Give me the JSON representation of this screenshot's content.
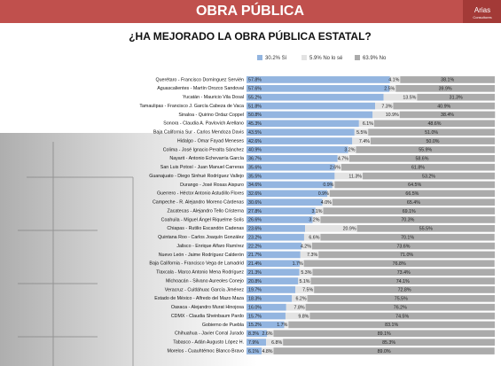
{
  "logo": {
    "name": "Arias",
    "tagline": "Consultores"
  },
  "chart_data": {
    "type": "stacked-bar-horizontal",
    "title": "OBRA PÚBLICA",
    "subtitle": "¿HA MEJORADO LA OBRA PÚBLICA ESTATAL?",
    "xlim": [
      0,
      100
    ],
    "categories": [
      "Querétaro - Francisco Domínguez Servién",
      "Aguascalientes - Martín Orozco Sandoval",
      "Yucatán - Mauricio Vila Dosal",
      "Tamaulipas - Francisco J. García Cabeza de Vaca",
      "Sinaloa - Quirino Ordaz Coppel",
      "Sonora - Claudia A. Pavlovich Arellano",
      "Baja California Sur - Carlos Mendoza Davis",
      "Hidalgo - Omar Fayad Meneses",
      "Colima - José Ignacio Peralta Sánchez",
      "Nayarit - Antonio Echevarría García",
      "San Luis Potosí - Juan Manuel Carreras",
      "Guanajuato - Diego Sinhué Rodríguez Vallejo",
      "Durango - José Rosas Aispuro",
      "Guerrero - Héctor Antonio Astudillo Flores",
      "Campeche - R. Alejandro Moreno Cárdenas",
      "Zacatecas - Alejandro Tello Cristerna",
      "Coahuila - Miguel Ángel Riquelme Solís",
      "Chiapas - Rutilio Escandón Cadenas",
      "Quintana Roo - Carlos Joaquín González",
      "Jalisco - Enrique Alfaro Ramírez",
      "Nuevo León - Jaime Rodríguez Calderón",
      "Baja California - Francisco Vega de Lamadrid",
      "Tlaxcala - Marco Antonio Mena Rodríguez",
      "Michoacán - Silvano Aureoles Conejo",
      "Veracruz - Cuitláhuac García Jiménez",
      "Estado de México - Alfredo del Mazo Maza",
      "Oaxaca - Alejandro Murat Hinojosa",
      "CDMX - Claudia Sheinbaum Pardo",
      "Gobierno de Puebla",
      "Chihuahua - Javier Corral Jurado",
      "Tabasco - Adán Augusto López H.",
      "Morelos - Cuauhtémoc Blanco Bravo"
    ],
    "series": [
      {
        "name": "30.2% Sí",
        "color": "#93b5e0",
        "values": [
          57.8,
          57.6,
          55.2,
          51.8,
          50.8,
          45.3,
          43.5,
          42.6,
          40.9,
          36.7,
          35.6,
          35.5,
          34.6,
          32.6,
          30.6,
          27.8,
          26.6,
          23.6,
          23.2,
          22.2,
          21.7,
          21.4,
          21.3,
          20.8,
          19.7,
          18.3,
          16.0,
          15.7,
          15.2,
          8.3,
          7.9,
          6.1
        ],
        "value_labels": [
          "57.8%",
          "57.6%",
          "55.2%",
          "51.8%",
          "50.8%",
          "45.3%",
          "43.5%",
          "42.6%",
          "40.9%",
          "36.7%",
          "35.6%",
          "35.5%",
          "34.6%",
          "32.6%",
          "30.6%",
          "27.8%",
          "26.6%",
          "23.6%",
          "23.2%",
          "22.2%",
          "21.7%",
          "21.4%",
          "21.3%",
          "20.8%",
          "19.7%",
          "18.3%",
          "16.0%",
          "15.7%",
          "15.2%",
          "8.3%",
          "7.9%",
          "6.1%"
        ]
      },
      {
        "name": "5.9% No lo sé",
        "color": "#e3e3e3",
        "values": [
          4.1,
          2.5,
          13.5,
          7.3,
          10.9,
          6.1,
          5.5,
          7.4,
          3.2,
          4.7,
          2.6,
          11.3,
          0.9,
          0.9,
          4.0,
          3.1,
          3.2,
          20.9,
          6.6,
          4.2,
          7.3,
          1.7,
          5.3,
          5.1,
          7.5,
          6.2,
          7.8,
          9.8,
          1.7,
          2.6,
          6.8,
          4.8
        ],
        "value_labels": [
          "4.1%",
          "2.5%",
          "13.5%",
          "7.3%",
          "10.9%",
          "6.1%",
          "5.5%",
          "7.4%",
          "3.2%",
          "4.7%",
          "2.6%",
          "11.3%",
          "0.9%",
          "0.9%",
          "4.0%",
          "3.1%",
          "3.2%",
          "20.9%",
          "6.6%",
          "4.2%",
          "7.3%",
          "1.7%",
          "5.3%",
          "5.1%",
          "7.5%",
          "6.2%",
          "7.8%",
          "9.8%",
          "1.7%",
          "2.6%",
          "6.8%",
          "4.8%"
        ]
      },
      {
        "name": "63.9% No",
        "color": "#ababab",
        "values": [
          38.1,
          39.9,
          31.3,
          40.9,
          38.4,
          48.6,
          51.0,
          50.0,
          55.9,
          58.6,
          61.8,
          53.2,
          64.5,
          66.5,
          65.4,
          69.1,
          70.3,
          55.5,
          70.1,
          73.6,
          71.0,
          76.8,
          73.4,
          74.1,
          72.8,
          75.5,
          76.2,
          74.5,
          83.1,
          89.1,
          85.3,
          89.0
        ],
        "value_labels": [
          "38.1%",
          "39.9%",
          "31.3%",
          "40.9%",
          "38.4%",
          "48.6%",
          "51.0%",
          "50.0%",
          "55.9%",
          "58.6%",
          "61.8%",
          "53.2%",
          "64.5%",
          "66.5%",
          "65.4%",
          "69.1%",
          "70.3%",
          "55.5%",
          "70.1%",
          "73.6%",
          "71.0%",
          "76.8%",
          "73.4%",
          "74.1%",
          "72.8%",
          "75.5%",
          "76.2%",
          "74.5%",
          "83.1%",
          "89.1%",
          "85.3%",
          "89.0%"
        ]
      }
    ]
  }
}
